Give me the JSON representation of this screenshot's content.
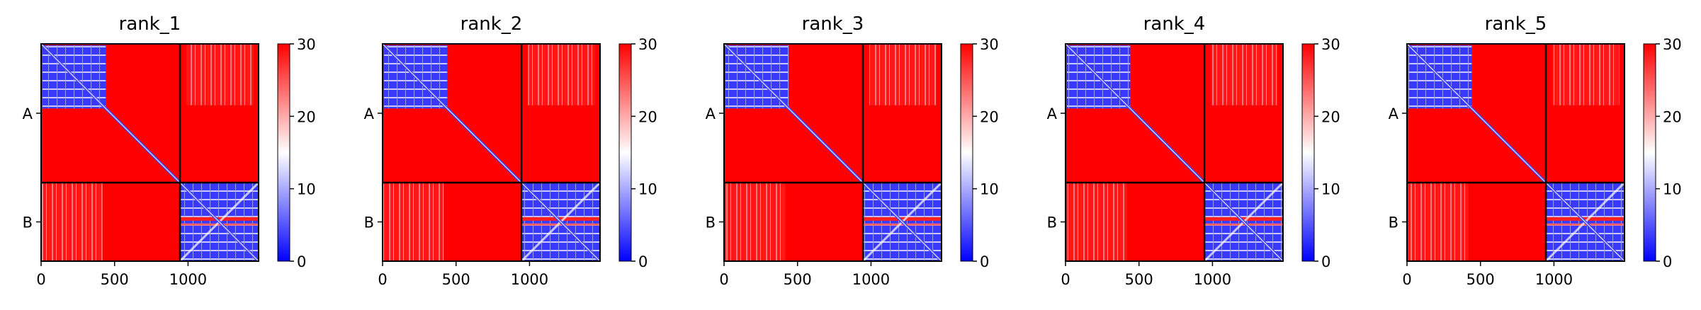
{
  "chart_data": [
    {
      "type": "heatmap",
      "title": "rank_1",
      "x_ticks": [
        0,
        500,
        1000
      ],
      "y_ticks": [
        "A",
        "B"
      ],
      "xlim": [
        0,
        1480
      ],
      "chain_boundary": 945,
      "colorbar": {
        "min": 0,
        "max": 30,
        "ticks": [
          0,
          10,
          20,
          30
        ],
        "colormap": "bwr"
      },
      "domain_end": 440,
      "grid": false
    },
    {
      "type": "heatmap",
      "title": "rank_2",
      "x_ticks": [
        0,
        500,
        1000
      ],
      "y_ticks": [
        "A",
        "B"
      ],
      "xlim": [
        0,
        1480
      ],
      "chain_boundary": 945,
      "colorbar": {
        "min": 0,
        "max": 30,
        "ticks": [
          0,
          10,
          20,
          30
        ],
        "colormap": "bwr"
      },
      "domain_end": 440,
      "grid": false
    },
    {
      "type": "heatmap",
      "title": "rank_3",
      "x_ticks": [
        0,
        500,
        1000
      ],
      "y_ticks": [
        "A",
        "B"
      ],
      "xlim": [
        0,
        1480
      ],
      "chain_boundary": 945,
      "colorbar": {
        "min": 0,
        "max": 30,
        "ticks": [
          0,
          10,
          20,
          30
        ],
        "colormap": "bwr"
      },
      "domain_end": 440,
      "grid": false
    },
    {
      "type": "heatmap",
      "title": "rank_4",
      "x_ticks": [
        0,
        500,
        1000
      ],
      "y_ticks": [
        "A",
        "B"
      ],
      "xlim": [
        0,
        1480
      ],
      "chain_boundary": 945,
      "colorbar": {
        "min": 0,
        "max": 30,
        "ticks": [
          0,
          10,
          20,
          30
        ],
        "colormap": "bwr"
      },
      "domain_end": 440,
      "grid": false
    },
    {
      "type": "heatmap",
      "title": "rank_5",
      "x_ticks": [
        0,
        500,
        1000
      ],
      "y_ticks": [
        "A",
        "B"
      ],
      "xlim": [
        0,
        1480
      ],
      "chain_boundary": 945,
      "colorbar": {
        "min": 0,
        "max": 30,
        "ticks": [
          0,
          10,
          20,
          30
        ],
        "colormap": "bwr"
      },
      "domain_end": 440,
      "grid": false
    }
  ],
  "colors": {
    "high": "#ff0000",
    "mid": "#ffffff",
    "low": "#0000ff",
    "frame": "#000000"
  }
}
